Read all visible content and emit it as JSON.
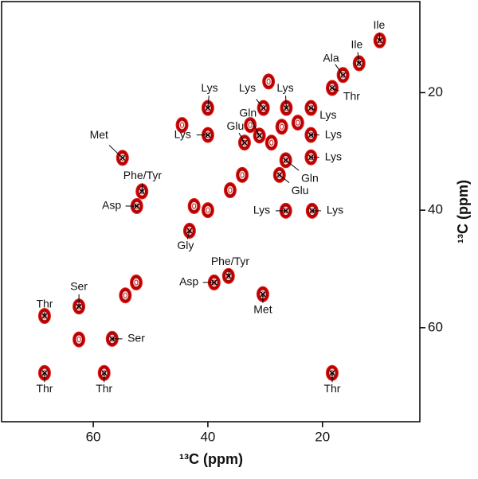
{
  "chart_data": {
    "type": "contour",
    "x_label": "¹³C (ppm)",
    "y_label": "¹³C (ppm)",
    "xlim": [
      76,
      3
    ],
    "ylim": [
      4.5,
      76
    ],
    "xticks": [
      60,
      40,
      20
    ],
    "yticks": [
      20,
      40,
      60
    ],
    "color": "#c00000",
    "x": [
      10,
      13.6,
      16.4,
      18.3,
      40,
      30.3,
      26.3,
      22,
      40,
      22,
      22,
      33.6,
      31,
      26.4,
      27.5,
      54.9,
      51.5,
      52.4,
      26.4,
      21.8,
      43.2,
      38.9,
      36.4,
      30.4,
      62.5,
      68.5,
      56.7,
      68.5,
      58.1,
      18.3,
      40,
      34,
      28.9,
      27.1,
      24.3,
      36.1,
      42.4,
      62.5,
      54.4,
      52.5,
      32.6,
      29.4,
      44.5
    ],
    "y": [
      11.1,
      15,
      17,
      19.2,
      22.6,
      22.6,
      22.6,
      22.6,
      27.2,
      27.2,
      31,
      28.5,
      27.3,
      31.5,
      34,
      31.1,
      36.8,
      39.3,
      40.1,
      40.1,
      43.5,
      52.3,
      51.2,
      54.3,
      56.4,
      58,
      61.9,
      67.7,
      67.7,
      67.7,
      40,
      34,
      28.5,
      25.8,
      25.1,
      36.6,
      39.3,
      62,
      54.5,
      52.3,
      25.5,
      18.1,
      25.5
    ],
    "annotations": [
      {
        "text": "Ile",
        "xy": [
          10,
          11.1
        ],
        "xytext": [
          10.1,
          8.6
        ]
      },
      {
        "text": "Ile",
        "xy": [
          13.6,
          15
        ],
        "xytext": [
          14,
          11.9
        ]
      },
      {
        "text": "Ala",
        "xy": [
          16.4,
          17
        ],
        "xytext": [
          18.5,
          14.2
        ]
      },
      {
        "text": "Thr",
        "xy": [
          18.3,
          19.2
        ],
        "xytext": [
          14.9,
          20.7
        ]
      },
      {
        "text": "Lys",
        "xy": [
          40,
          22.6
        ],
        "xytext": [
          39.7,
          19.3
        ]
      },
      {
        "text": "Lys",
        "xy": [
          30.3,
          22.6
        ],
        "xytext": [
          33.1,
          19.3
        ]
      },
      {
        "text": "Lys",
        "xy": [
          26.3,
          22.6
        ],
        "xytext": [
          26.5,
          19.3
        ]
      },
      {
        "text": "Lys",
        "xy": [
          22,
          22.6
        ],
        "xytext": [
          19,
          23.9
        ]
      },
      {
        "text": "Lys",
        "xy": [
          40,
          27.2
        ],
        "xytext": [
          44.4,
          27.2
        ]
      },
      {
        "text": "Lys",
        "xy": [
          22,
          27.2
        ],
        "xytext": [
          18.1,
          27.2
        ]
      },
      {
        "text": "Lys",
        "xy": [
          22,
          31
        ],
        "xytext": [
          18.1,
          31
        ]
      },
      {
        "text": "Gln",
        "xy": [
          31,
          27.3
        ],
        "xytext": [
          33,
          23.6
        ]
      },
      {
        "text": "Glu",
        "xy": [
          33.6,
          28.5
        ],
        "xytext": [
          35.2,
          25.8
        ]
      },
      {
        "text": "Gln",
        "xy": [
          26.4,
          31.5
        ],
        "xytext": [
          22.2,
          34.7
        ]
      },
      {
        "text": "Glu",
        "xy": [
          27.5,
          34
        ],
        "xytext": [
          23.9,
          36.8
        ]
      },
      {
        "text": "Met",
        "xy": [
          54.9,
          31.1
        ],
        "xytext": [
          59,
          27.3
        ]
      },
      {
        "text": "Phe/Tyr",
        "xy": [
          51.5,
          36.8
        ],
        "xytext": [
          51.4,
          34.2
        ]
      },
      {
        "text": "Asp",
        "xy": [
          52.4,
          39.3
        ],
        "xytext": [
          56.8,
          39.3
        ]
      },
      {
        "text": "Lys",
        "xy": [
          26.4,
          40.1
        ],
        "xytext": [
          30.6,
          40.1
        ]
      },
      {
        "text": "Lys",
        "xy": [
          21.8,
          40.1
        ],
        "xytext": [
          17.8,
          40.1
        ]
      },
      {
        "text": "Gly",
        "xy": [
          43.2,
          43.5
        ],
        "xytext": [
          43.9,
          46.1
        ]
      },
      {
        "text": "Phe/Tyr",
        "xy": [
          36.4,
          51.2
        ],
        "xytext": [
          36.1,
          48.8
        ]
      },
      {
        "text": "Asp",
        "xy": [
          38.9,
          52.3
        ],
        "xytext": [
          43.3,
          52.3
        ]
      },
      {
        "text": "Met",
        "xy": [
          30.4,
          54.3
        ],
        "xytext": [
          30.4,
          57
        ]
      },
      {
        "text": "Ser",
        "xy": [
          62.5,
          56.4
        ],
        "xytext": [
          62.5,
          53.1
        ]
      },
      {
        "text": "Thr",
        "xy": [
          68.5,
          58
        ],
        "xytext": [
          68.5,
          56.1
        ]
      },
      {
        "text": "Ser",
        "xy": [
          56.7,
          61.9
        ],
        "xytext": [
          52.5,
          61.9
        ]
      },
      {
        "text": "Thr",
        "xy": [
          68.5,
          67.7
        ],
        "xytext": [
          68.5,
          70.5
        ]
      },
      {
        "text": "Thr",
        "xy": [
          58.1,
          67.7
        ],
        "xytext": [
          58.1,
          70.5
        ]
      },
      {
        "text": "Thr",
        "xy": [
          18.3,
          67.7
        ],
        "xytext": [
          18.3,
          70.5
        ]
      }
    ]
  }
}
